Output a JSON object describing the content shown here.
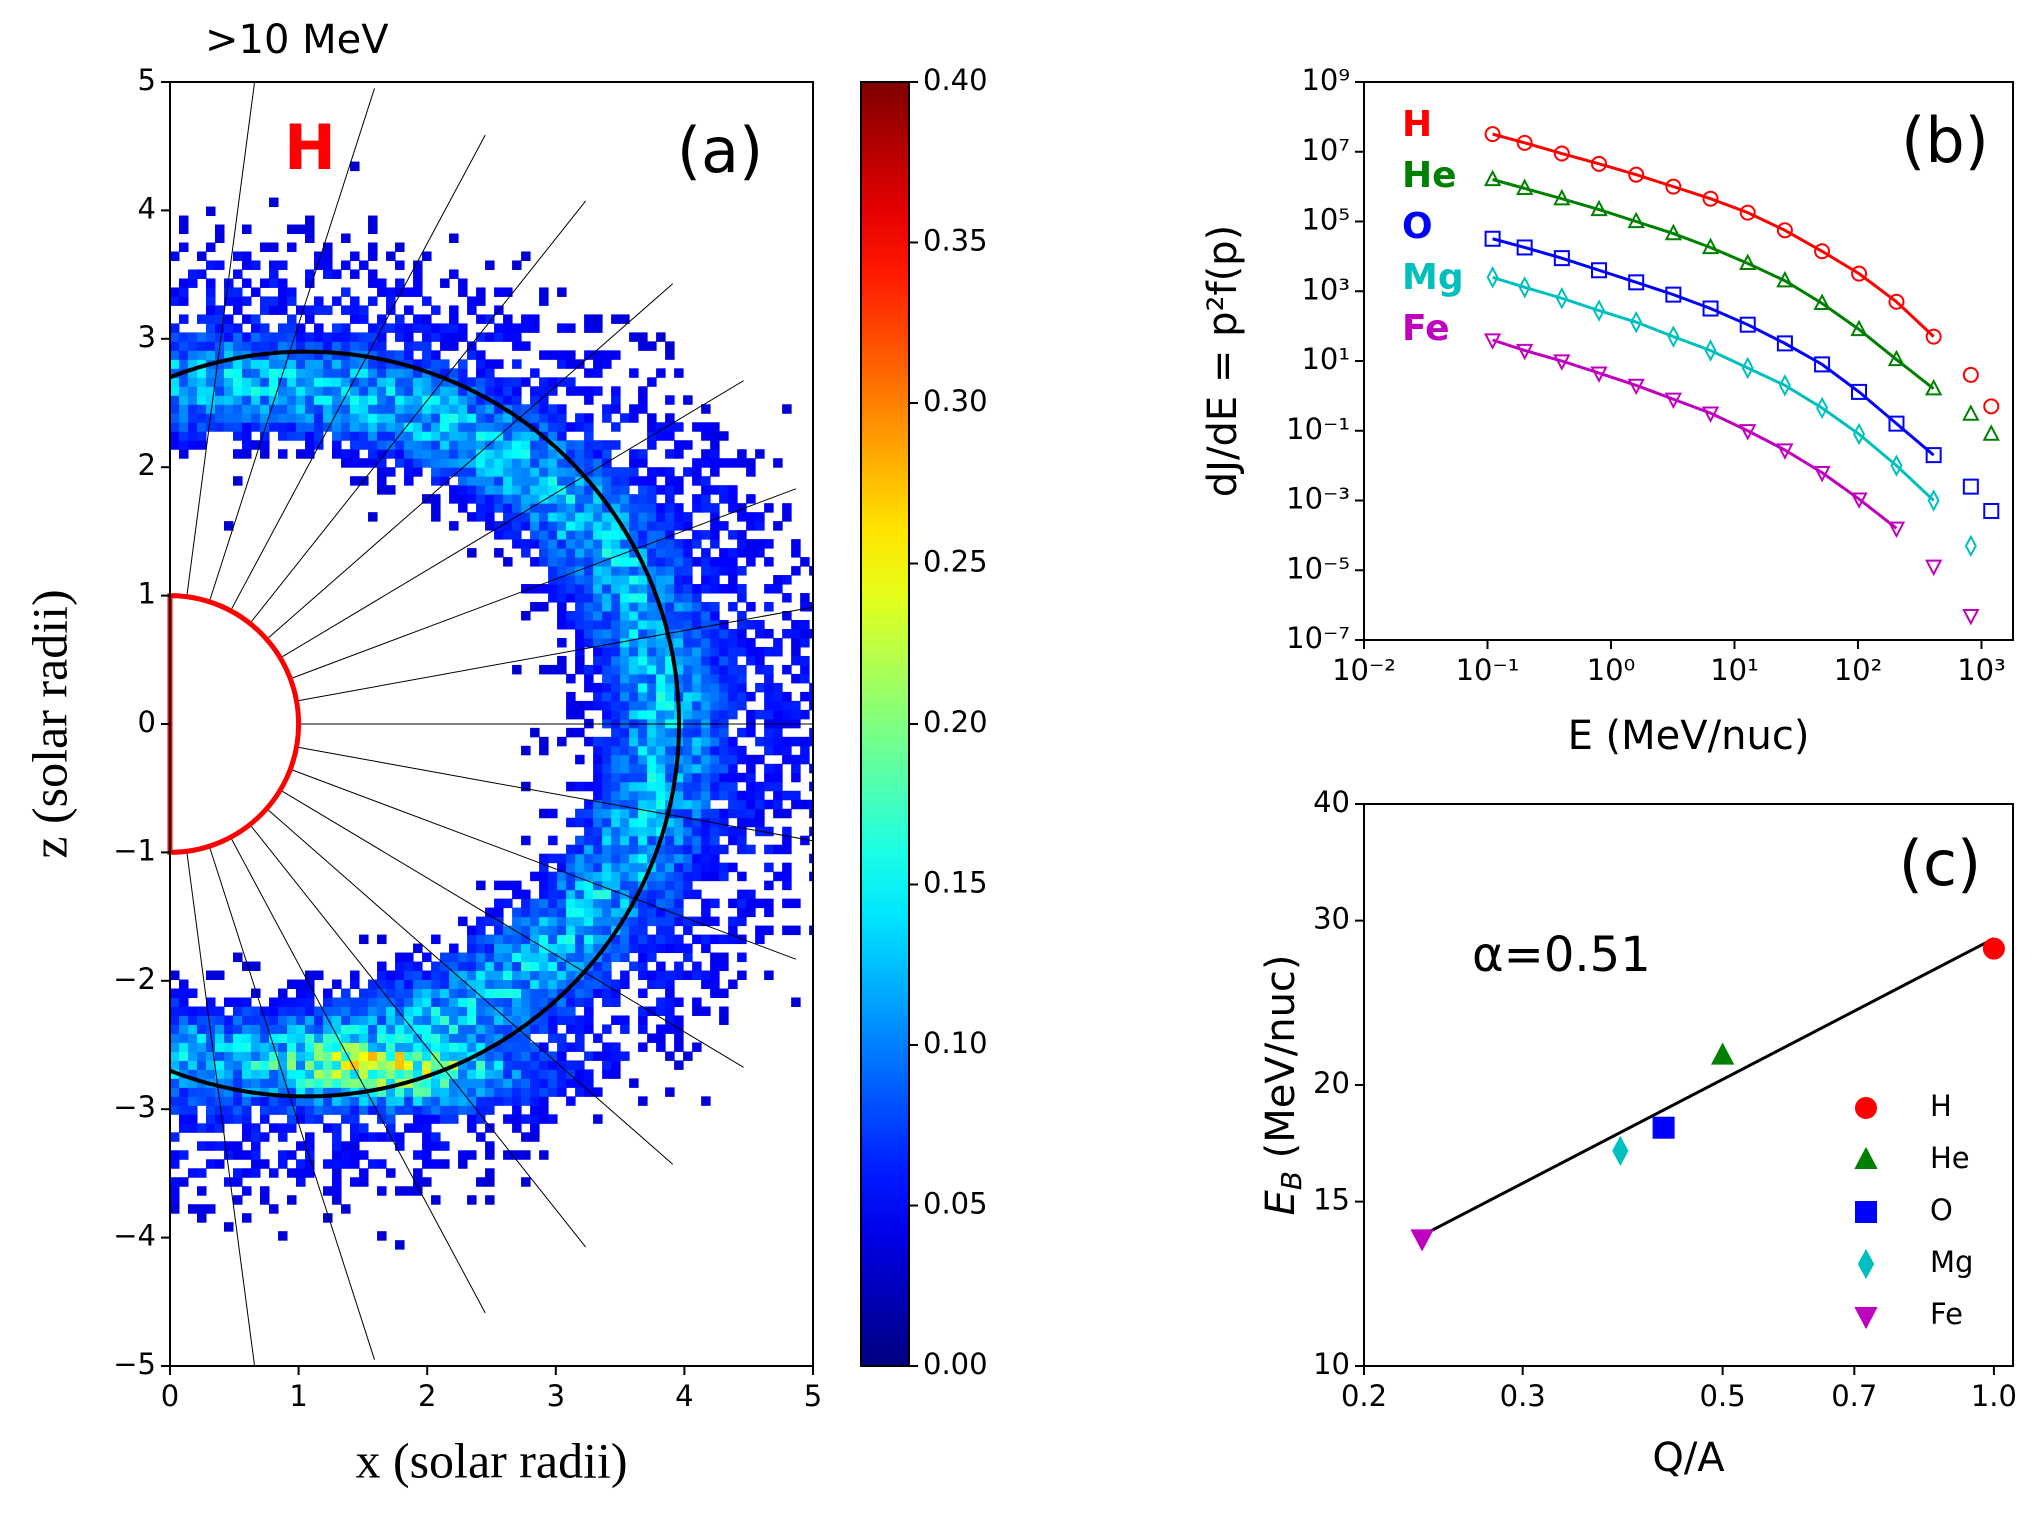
{
  "chart_data": [
    {
      "type": "heatmap",
      "title": ">10 MeV",
      "species": "H",
      "panel_label": "(a)",
      "xlabel": "x (solar radii)",
      "ylabel": "z (solar radii)",
      "xlim": [
        0,
        5
      ],
      "ylim": [
        -5,
        5
      ],
      "xticks": [
        0,
        1,
        2,
        3,
        4,
        5
      ],
      "yticks": [
        {
          "value": -5,
          "label": "−5"
        },
        {
          "value": -4,
          "label": "−4"
        },
        {
          "value": -3,
          "label": "−3"
        },
        {
          "value": -2,
          "label": "−2"
        },
        {
          "value": -1,
          "label": "−1"
        },
        0,
        1,
        2,
        3,
        4,
        5
      ],
      "colorbar": {
        "colormap": "jet",
        "lim": [
          0,
          0.4
        ],
        "ticks": [
          {
            "value": 0,
            "label": "0.00"
          },
          {
            "value": 0.05,
            "label": "0.05"
          },
          {
            "value": 0.1,
            "label": "0.10"
          },
          {
            "value": 0.15,
            "label": "0.15"
          },
          {
            "value": 0.2,
            "label": "0.20"
          },
          {
            "value": 0.25,
            "label": "0.25"
          },
          {
            "value": 0.3,
            "label": "0.30"
          },
          {
            "value": 0.35,
            "label": "0.35"
          },
          {
            "value": 0.4,
            "label": "0.40"
          }
        ]
      }
    },
    {
      "type": "line",
      "panel_label": "(b)",
      "xlabel": "E (MeV/nuc)",
      "ylabel": "dJ/dE = p²f(p)",
      "xscale": "log",
      "yscale": "log",
      "xlim": [
        0.01,
        1800
      ],
      "ylim": [
        1e-07,
        1000000000.0
      ],
      "xticks": [
        {
          "value": 0.01,
          "label": "10⁻²"
        },
        {
          "value": 0.1,
          "label": "10⁻¹"
        },
        {
          "value": 1,
          "label": "10⁰"
        },
        {
          "value": 10,
          "label": "10¹"
        },
        {
          "value": 100,
          "label": "10²"
        },
        {
          "value": 1000,
          "label": "10³"
        }
      ],
      "yticks": [
        {
          "value": 1e-07,
          "label": "10⁻⁷"
        },
        {
          "value": 1e-05,
          "label": "10⁻⁵"
        },
        {
          "value": 0.001,
          "label": "10⁻³"
        },
        {
          "value": 0.1,
          "label": "10⁻¹"
        },
        {
          "value": 10,
          "label": "10¹"
        },
        {
          "value": 1000,
          "label": "10³"
        },
        {
          "value": 100000,
          "label": "10⁵"
        },
        {
          "value": 10000000,
          "label": "10⁷"
        },
        {
          "value": 1000000000,
          "label": "10⁹"
        }
      ],
      "x": [
        0.11,
        0.2,
        0.4,
        0.8,
        1.6,
        3.2,
        6.4,
        12.8,
        25.6,
        51.2,
        102,
        205,
        410,
        820,
        1200
      ],
      "series": [
        {
          "name": "H",
          "color": "#ff0000",
          "marker": "circle",
          "values": [
            32000000.0,
            18000000.0,
            8900000.0,
            4500000.0,
            2200000.0,
            1000000.0,
            450000.0,
            180000.0,
            56000.0,
            14000.0,
            3200,
            500,
            50,
            4,
            0.5
          ],
          "fit": [
            32000000.0,
            18000000.0,
            8900000.0,
            4500000.0,
            2200000.0,
            1000000.0,
            450000.0,
            180000.0,
            56000.0,
            14000.0,
            3200,
            500,
            50,
            null,
            null
          ]
        },
        {
          "name": "He",
          "color": "#008000",
          "marker": "triangle-up",
          "values": [
            1600000.0,
            890000.0,
            450000.0,
            220000.0,
            100000.0,
            45000.0,
            18000.0,
            6300,
            2000,
            450,
            80,
            11,
            1.6,
            0.3,
            0.08
          ],
          "fit": [
            1600000.0,
            890000.0,
            450000.0,
            220000.0,
            100000.0,
            45000.0,
            18000.0,
            6300,
            2000,
            450,
            80,
            11,
            1.6,
            null,
            null
          ]
        },
        {
          "name": "O",
          "color": "#0000ff",
          "marker": "square",
          "values": [
            32000.0,
            18000.0,
            8900,
            4000,
            1800,
            800,
            320,
            110,
            32,
            8,
            1.3,
            0.16,
            0.02,
            0.0025,
            0.0005
          ],
          "fit": [
            32000.0,
            18000.0,
            8900,
            4000,
            1800,
            800,
            320,
            110,
            32,
            8,
            1.3,
            0.16,
            0.02,
            null,
            null
          ]
        },
        {
          "name": "Mg",
          "color": "#00bfbf",
          "marker": "diamond",
          "values": [
            2500,
            1300,
            630,
            280,
            130,
            50,
            20,
            6.3,
            2,
            0.45,
            0.08,
            0.01,
            0.001,
            5e-05,
            null
          ],
          "fit": [
            2500,
            1300,
            630,
            280,
            130,
            50,
            20,
            6.3,
            2,
            0.45,
            0.08,
            0.01,
            0.001,
            null,
            null
          ]
        },
        {
          "name": "Fe",
          "color": "#bf00bf",
          "marker": "triangle-down",
          "values": [
            40,
            20,
            10,
            4.5,
            2,
            0.8,
            0.32,
            0.1,
            0.028,
            0.0063,
            0.0011,
            0.00016,
            1.3e-05,
            5e-07,
            null
          ],
          "fit": [
            40,
            20,
            10,
            4.5,
            2,
            0.8,
            0.32,
            0.1,
            0.028,
            0.0063,
            0.0011,
            0.00016,
            null,
            null,
            null
          ]
        }
      ]
    },
    {
      "type": "scatter",
      "panel_label": "(c)",
      "xlabel": "Q/A",
      "ylabel": "E",
      "ylabel_sub": "B",
      "ylabel_rest": " (MeV/nuc)",
      "annotation": "α=0.51",
      "xscale": "log",
      "yscale": "log",
      "xlim": [
        0.2,
        1.05
      ],
      "ylim": [
        10,
        40
      ],
      "xticks": [
        0.2,
        0.3,
        0.5,
        0.7,
        {
          "value": 1,
          "label": "1.0"
        }
      ],
      "yticks": [
        10,
        15,
        20,
        30,
        40
      ],
      "legend": "lower right",
      "fit": {
        "x": [
          0.232,
          1
        ],
        "y": [
          13.8,
          28.7
        ]
      },
      "series": [
        {
          "name": "H",
          "color": "#ff0000",
          "marker": "circle",
          "x": [
            1
          ],
          "values": [
            28
          ]
        },
        {
          "name": "He",
          "color": "#008000",
          "marker": "triangle-up",
          "x": [
            0.5
          ],
          "values": [
            21.5
          ]
        },
        {
          "name": "O",
          "color": "#0000ff",
          "marker": "square",
          "x": [
            0.43
          ],
          "values": [
            18
          ]
        },
        {
          "name": "Mg",
          "color": "#00bfbf",
          "marker": "diamond",
          "x": [
            0.385
          ],
          "values": [
            17
          ]
        },
        {
          "name": "Fe",
          "color": "#bf00bf",
          "marker": "triangle-down",
          "x": [
            0.232
          ],
          "values": [
            13.7
          ]
        }
      ]
    }
  ]
}
